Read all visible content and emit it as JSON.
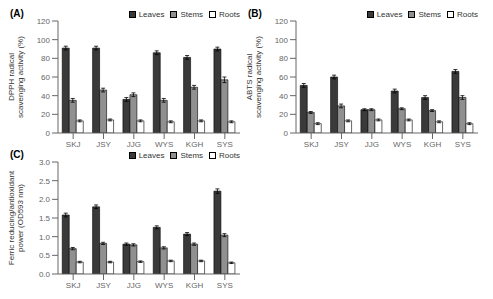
{
  "chart_data": [
    {
      "type": "bar",
      "title": "(A)",
      "y_label": "DPPH radical\nscavenging activity (%)",
      "categories": [
        "SKJ",
        "JSY",
        "JJG",
        "WYS",
        "KGH",
        "SYS"
      ],
      "series": [
        {
          "name": "Leaves",
          "color": "#3a3a3a",
          "values": [
            91,
            91,
            36,
            86,
            81,
            90
          ],
          "errors": [
            2,
            2,
            2,
            2,
            2,
            2
          ]
        },
        {
          "name": "Stems",
          "color": "#909090",
          "values": [
            35,
            46,
            41,
            35,
            49,
            57
          ],
          "errors": [
            2,
            2,
            2,
            2,
            2,
            3
          ]
        },
        {
          "name": "Roots",
          "color": "#ffffff",
          "values": [
            13,
            14,
            13,
            12,
            13,
            12
          ],
          "errors": [
            1,
            1,
            1,
            1,
            1,
            1
          ]
        }
      ],
      "ylim": [
        0,
        120
      ],
      "yticks": [
        0,
        20,
        40,
        60,
        80,
        100,
        120
      ],
      "legend": "upper right",
      "grid": false
    },
    {
      "type": "bar",
      "title": "(B)",
      "y_label": "ABTS radical\nscavenging activity (%)",
      "categories": [
        "SKJ",
        "JSY",
        "JJG",
        "WYS",
        "KGH",
        "SYS"
      ],
      "series": [
        {
          "name": "Leaves",
          "color": "#3a3a3a",
          "values": [
            51,
            60,
            25,
            45,
            38,
            66
          ],
          "errors": [
            2,
            2,
            1,
            2,
            2,
            2
          ]
        },
        {
          "name": "Stems",
          "color": "#909090",
          "values": [
            22,
            29,
            25,
            26,
            24,
            38
          ],
          "errors": [
            1,
            2,
            1,
            1,
            1,
            2
          ]
        },
        {
          "name": "Roots",
          "color": "#ffffff",
          "values": [
            10,
            13,
            14,
            14,
            12,
            10
          ],
          "errors": [
            1,
            1,
            1,
            1,
            1,
            1
          ]
        }
      ],
      "ylim": [
        0,
        120
      ],
      "yticks": [
        0,
        20,
        40,
        60,
        80,
        100,
        120
      ],
      "legend": "upper right",
      "grid": false
    },
    {
      "type": "bar",
      "title": "(C)",
      "y_label": "Ferric reducing/antioxidant\npower (OD593 nm)",
      "categories": [
        "SKJ",
        "JSY",
        "JJG",
        "WYS",
        "KGH",
        "SYS"
      ],
      "series": [
        {
          "name": "Leaves",
          "color": "#3a3a3a",
          "values": [
            1.58,
            1.8,
            0.8,
            1.25,
            1.07,
            2.22
          ],
          "errors": [
            0.05,
            0.05,
            0.03,
            0.04,
            0.04,
            0.06
          ]
        },
        {
          "name": "Stems",
          "color": "#909090",
          "values": [
            0.68,
            0.82,
            0.78,
            0.7,
            0.8,
            1.04
          ],
          "errors": [
            0.03,
            0.03,
            0.03,
            0.03,
            0.03,
            0.04
          ]
        },
        {
          "name": "Roots",
          "color": "#ffffff",
          "values": [
            0.32,
            0.32,
            0.33,
            0.35,
            0.35,
            0.3
          ],
          "errors": [
            0.02,
            0.02,
            0.02,
            0.02,
            0.02,
            0.02
          ]
        }
      ],
      "ylim": [
        0.0,
        3.0
      ],
      "yticks": [
        {
          "value": 0,
          "label": "0.0"
        },
        0.5,
        {
          "value": 1,
          "label": "1.0"
        },
        1.5,
        {
          "value": 2,
          "label": "2.0"
        },
        2.5,
        {
          "value": 3,
          "label": "3.0"
        }
      ],
      "legend": "upper right",
      "grid": false
    }
  ]
}
